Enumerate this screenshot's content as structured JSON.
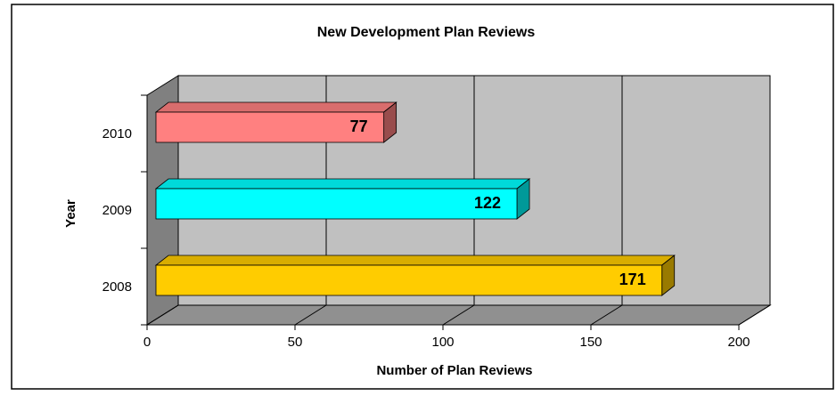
{
  "chart_data": {
    "type": "bar3d_horizontal",
    "title": "New Development Plan Reviews",
    "categories": [
      "2008",
      "2009",
      "2010"
    ],
    "values": [
      171,
      122,
      77
    ],
    "colors": [
      "#ffcc00",
      "#00ffff",
      "#ff8080"
    ],
    "x_label": "Number of Plan Reviews",
    "y_label": "Year",
    "xlim": [
      0,
      200
    ],
    "xticks": [
      0,
      50,
      100,
      150,
      200
    ],
    "grid": true
  }
}
